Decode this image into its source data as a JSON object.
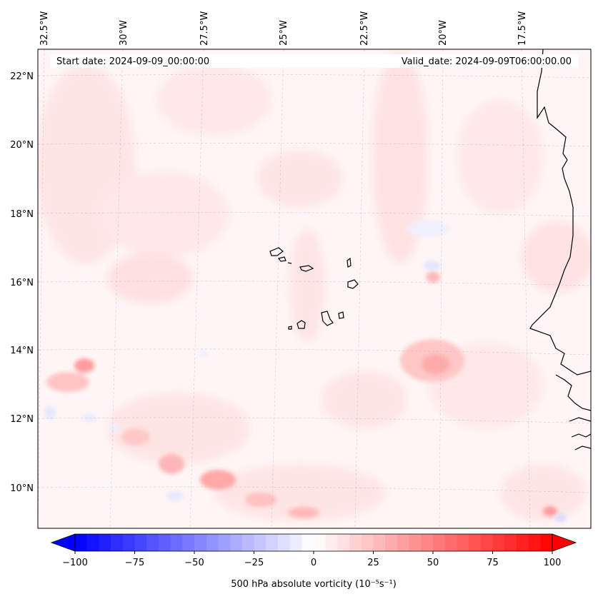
{
  "map": {
    "start_label": "Start date: 2024-09-09_00:00:00",
    "valid_label": "Valid_date: 2024-09-09T06:00:00.00",
    "lon_ticks": [
      "32.5°W",
      "30°W",
      "27.5°W",
      "25°W",
      "22.5°W",
      "20°W",
      "17.5°W"
    ],
    "lat_ticks": [
      "22°N",
      "20°N",
      "18°N",
      "16°N",
      "14°N",
      "12°N",
      "10°N"
    ],
    "field_colors": {
      "positive": "#ff0000",
      "negative": "#0000ff",
      "neutral": "#ffffff",
      "coastline": "#000000"
    }
  },
  "colorbar": {
    "label": "500 hPa absolute vorticity (10⁻⁵s⁻¹)",
    "ticks": [
      "−100",
      "−75",
      "−50",
      "−25",
      "0",
      "25",
      "50",
      "75",
      "100"
    ],
    "range": [
      -100,
      100
    ],
    "step": 5,
    "colormap": "bwr"
  }
}
